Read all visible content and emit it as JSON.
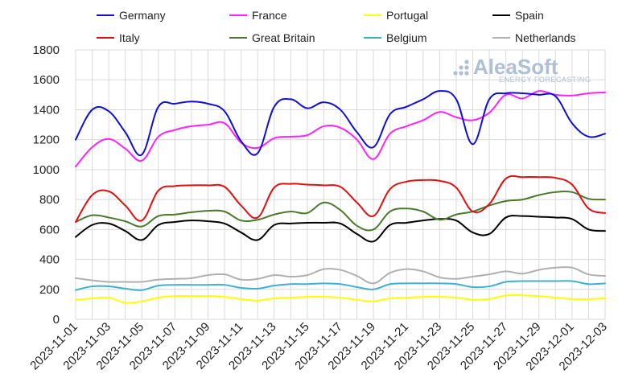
{
  "brand": {
    "name": "AleaSoft",
    "tagline": "ENERGY FORECASTING"
  },
  "chart_data": {
    "type": "line",
    "xlabel": "",
    "ylabel": "",
    "ylim": [
      0,
      1800
    ],
    "yticks": [
      0,
      200,
      400,
      600,
      800,
      1000,
      1200,
      1400,
      1600,
      1800
    ],
    "grid": true,
    "legend_position": "top",
    "x": [
      "2023-11-01",
      "2023-11-02",
      "2023-11-03",
      "2023-11-04",
      "2023-11-05",
      "2023-11-06",
      "2023-11-07",
      "2023-11-08",
      "2023-11-09",
      "2023-11-10",
      "2023-11-11",
      "2023-11-12",
      "2023-11-13",
      "2023-11-14",
      "2023-11-15",
      "2023-11-16",
      "2023-11-17",
      "2023-11-18",
      "2023-11-19",
      "2023-11-20",
      "2023-11-21",
      "2023-11-22",
      "2023-11-23",
      "2023-11-24",
      "2023-11-25",
      "2023-11-26",
      "2023-11-27",
      "2023-11-28",
      "2023-11-29",
      "2023-11-30",
      "2023-12-01",
      "2023-12-02",
      "2023-12-03"
    ],
    "xtick_labels": [
      "2023-11-01",
      "2023-11-03",
      "2023-11-05",
      "2023-11-07",
      "2023-11-09",
      "2023-11-11",
      "2023-11-13",
      "2023-11-15",
      "2023-11-17",
      "2023-11-19",
      "2023-11-21",
      "2023-11-23",
      "2023-11-25",
      "2023-11-27",
      "2023-11-29",
      "2023-12-01",
      "2023-12-03"
    ],
    "series": [
      {
        "name": "Germany",
        "color": "#1010d0",
        "values": [
          1200,
          1400,
          1390,
          1250,
          1100,
          1420,
          1440,
          1455,
          1440,
          1390,
          1190,
          1110,
          1420,
          1470,
          1410,
          1450,
          1400,
          1250,
          1150,
          1370,
          1420,
          1470,
          1525,
          1470,
          1170,
          1470,
          1510,
          1510,
          1500,
          1490,
          1310,
          1220,
          1240
        ]
      },
      {
        "name": "France",
        "color": "#ff22ff",
        "values": [
          1020,
          1150,
          1205,
          1140,
          1060,
          1220,
          1265,
          1290,
          1300,
          1310,
          1180,
          1145,
          1210,
          1220,
          1230,
          1290,
          1280,
          1200,
          1070,
          1240,
          1290,
          1330,
          1385,
          1350,
          1330,
          1380,
          1500,
          1475,
          1525,
          1500,
          1495,
          1510,
          1515
        ]
      },
      {
        "name": "Portugal",
        "color": "#ffff00",
        "values": [
          130,
          140,
          145,
          110,
          120,
          145,
          155,
          155,
          155,
          150,
          135,
          125,
          140,
          145,
          150,
          150,
          145,
          130,
          120,
          140,
          145,
          150,
          150,
          145,
          130,
          135,
          160,
          160,
          155,
          145,
          135,
          135,
          140
        ]
      },
      {
        "name": "Spain",
        "color": "#000000",
        "values": [
          550,
          630,
          640,
          590,
          530,
          630,
          650,
          660,
          655,
          640,
          580,
          530,
          630,
          640,
          645,
          645,
          640,
          570,
          520,
          630,
          645,
          660,
          670,
          660,
          580,
          570,
          680,
          690,
          685,
          680,
          670,
          600,
          590
        ]
      },
      {
        "name": "Italy",
        "color": "#e01010",
        "values": [
          650,
          830,
          855,
          760,
          660,
          860,
          890,
          895,
          895,
          885,
          760,
          680,
          880,
          905,
          900,
          895,
          885,
          780,
          690,
          870,
          920,
          930,
          925,
          880,
          720,
          770,
          940,
          950,
          950,
          945,
          900,
          740,
          710
        ]
      },
      {
        "name": "Great Britain",
        "color": "#4a7a2c",
        "values": [
          650,
          695,
          680,
          655,
          620,
          690,
          700,
          715,
          725,
          720,
          660,
          665,
          700,
          720,
          710,
          780,
          730,
          625,
          600,
          720,
          740,
          720,
          665,
          700,
          720,
          760,
          790,
          800,
          830,
          850,
          850,
          805,
          800
        ]
      },
      {
        "name": "Belgium",
        "color": "#40b0d0",
        "values": [
          195,
          220,
          220,
          205,
          195,
          225,
          230,
          230,
          230,
          230,
          210,
          205,
          225,
          235,
          235,
          240,
          235,
          215,
          200,
          235,
          240,
          240,
          240,
          235,
          215,
          220,
          250,
          255,
          255,
          255,
          255,
          235,
          240
        ]
      },
      {
        "name": "Netherlands",
        "color": "#b0b0b0",
        "values": [
          275,
          260,
          250,
          250,
          250,
          265,
          270,
          275,
          295,
          300,
          265,
          270,
          295,
          285,
          295,
          335,
          330,
          290,
          240,
          310,
          335,
          320,
          280,
          270,
          285,
          300,
          320,
          305,
          330,
          345,
          345,
          300,
          290
        ]
      }
    ]
  }
}
